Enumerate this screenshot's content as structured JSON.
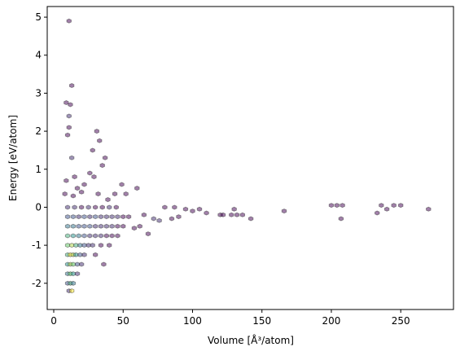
{
  "chart_data": {
    "type": "hexbin",
    "xlabel": "Volume [Å³/atom]",
    "ylabel": "Energy [eV/atom]",
    "xlim": [
      -4.7,
      288
    ],
    "ylim": [
      -2.69,
      5.28
    ],
    "xticks": [
      0,
      50,
      100,
      150,
      200,
      250
    ],
    "yticks": [
      -2,
      -1,
      0,
      1,
      2,
      3,
      4,
      5
    ],
    "colormap": "viridis",
    "alpha": 0.5,
    "x": [
      11,
      13,
      9,
      12,
      10,
      11,
      11,
      31,
      33,
      35,
      37,
      28,
      26,
      29,
      22,
      9,
      13,
      15,
      17,
      20,
      32,
      39,
      49,
      52,
      60,
      44,
      8,
      14,
      80,
      87,
      95,
      100,
      105,
      110,
      120,
      122,
      128,
      132,
      136,
      142,
      130,
      166,
      200,
      204,
      208,
      207,
      233,
      236,
      240,
      245,
      250,
      270,
      72,
      76,
      85,
      90,
      65,
      62,
      58,
      68,
      10,
      15,
      20,
      25,
      30,
      35,
      40,
      45,
      10,
      14,
      18,
      22,
      26,
      30,
      34,
      38,
      42,
      46,
      50,
      54,
      10,
      14,
      18,
      22,
      26,
      30,
      34,
      38,
      42,
      46,
      50,
      10,
      14,
      18,
      22,
      26,
      30,
      34,
      38,
      42,
      46,
      10,
      13,
      16,
      19,
      22,
      25,
      28,
      34,
      40,
      10,
      12,
      14,
      16,
      19,
      22,
      30,
      10,
      12,
      14,
      17,
      20,
      36,
      10,
      12,
      14,
      17,
      10,
      12,
      14,
      11,
      13
    ],
    "y": [
      4.9,
      3.2,
      2.75,
      2.7,
      1.9,
      2.1,
      2.4,
      2.0,
      1.75,
      1.1,
      1.3,
      1.5,
      0.9,
      0.8,
      0.6,
      0.7,
      1.3,
      0.8,
      0.5,
      0.4,
      0.35,
      0.2,
      0.6,
      0.35,
      0.5,
      0.35,
      0.35,
      0.3,
      0,
      0,
      -0.05,
      -0.1,
      -0.05,
      -0.15,
      -0.2,
      -0.2,
      -0.2,
      -0.2,
      -0.2,
      -0.3,
      -0.05,
      -0.1,
      0.05,
      0.05,
      0.05,
      -0.3,
      -0.15,
      0.05,
      -0.05,
      0.05,
      0.05,
      -0.05,
      -0.3,
      -0.35,
      -0.3,
      -0.25,
      -0.2,
      -0.5,
      -0.55,
      -0.7,
      0,
      0,
      0,
      0,
      0,
      0,
      0,
      0,
      -0.25,
      -0.25,
      -0.25,
      -0.25,
      -0.25,
      -0.25,
      -0.25,
      -0.25,
      -0.25,
      -0.25,
      -0.25,
      -0.25,
      -0.5,
      -0.5,
      -0.5,
      -0.5,
      -0.5,
      -0.5,
      -0.5,
      -0.5,
      -0.5,
      -0.5,
      -0.5,
      -0.75,
      -0.75,
      -0.75,
      -0.75,
      -0.75,
      -0.75,
      -0.75,
      -0.75,
      -0.75,
      -0.75,
      -1.0,
      -1.0,
      -1.0,
      -1.0,
      -1.0,
      -1.0,
      -1.0,
      -1.0,
      -1.0,
      -1.25,
      -1.25,
      -1.25,
      -1.25,
      -1.25,
      -1.25,
      -1.25,
      -1.5,
      -1.5,
      -1.5,
      -1.5,
      -1.5,
      -1.5,
      -1.75,
      -1.75,
      -1.75,
      -1.75,
      -2.0,
      -2.0,
      -2.0,
      -2.2,
      -2.2
    ],
    "counts": [
      1,
      1,
      1,
      1,
      1,
      1,
      2,
      1,
      1,
      1,
      1,
      1,
      1,
      1,
      1,
      1,
      2,
      1,
      1,
      1,
      1,
      1,
      1,
      1,
      1,
      1,
      1,
      1,
      1,
      1,
      1,
      1,
      1,
      1,
      1,
      1,
      1,
      1,
      1,
      1,
      1,
      1,
      1,
      1,
      1,
      1,
      1,
      1,
      1,
      1,
      1,
      1,
      2,
      2,
      1,
      1,
      1,
      1,
      1,
      1,
      2,
      2,
      1,
      2,
      1,
      1,
      2,
      1,
      3,
      3,
      2,
      3,
      2,
      3,
      2,
      2,
      2,
      2,
      1,
      1,
      4,
      4,
      3,
      3,
      3,
      2,
      2,
      2,
      2,
      1,
      1,
      6,
      5,
      4,
      3,
      2,
      2,
      2,
      1,
      1,
      1,
      7,
      8,
      6,
      4,
      3,
      2,
      2,
      1,
      1,
      6,
      9,
      8,
      5,
      3,
      2,
      1,
      5,
      8,
      7,
      3,
      2,
      1,
      4,
      7,
      5,
      2,
      3,
      6,
      4,
      2,
      9
    ]
  }
}
